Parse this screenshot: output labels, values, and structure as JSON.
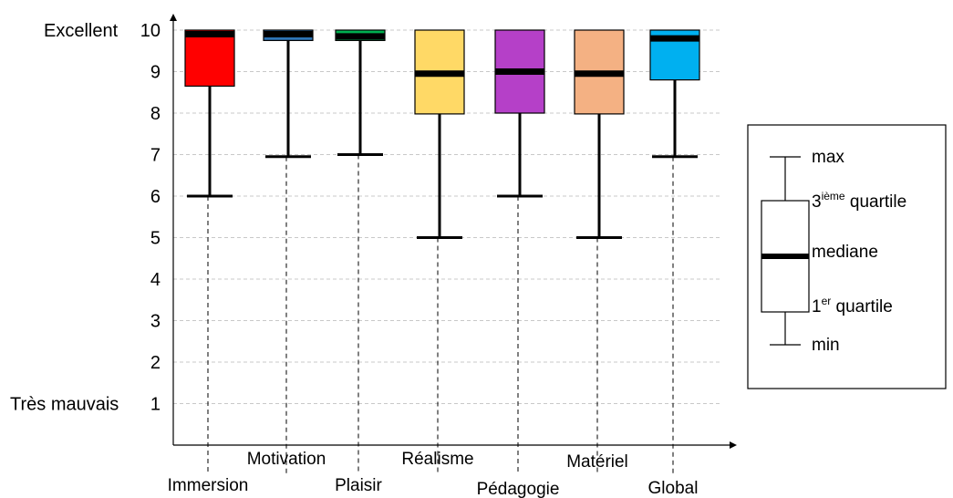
{
  "chart_data": {
    "type": "boxplot",
    "title": "",
    "ylim": [
      0,
      10
    ],
    "y_ticks": [
      "1",
      "2",
      "3",
      "4",
      "5",
      "6",
      "7",
      "8",
      "9",
      "10"
    ],
    "y_extreme_labels": {
      "top": "Excellent",
      "bottom": "Très mauvais"
    },
    "grid": "horizontal dashed",
    "categories": [
      "Immersion",
      "Motivation",
      "Plaisir",
      "Réalisme",
      "Pédagogie",
      "Matériel",
      "Global"
    ],
    "boxes": [
      {
        "name": "Immersion",
        "min": 6,
        "q1": 8.65,
        "median": 9.9,
        "q3": 10,
        "max": 10,
        "color": "#ff0000"
      },
      {
        "name": "Motivation",
        "min": 6.95,
        "q1": 9.75,
        "median": 9.9,
        "q3": 10,
        "max": 10,
        "color": "#2e75b6"
      },
      {
        "name": "Plaisir",
        "min": 7,
        "q1": 9.75,
        "median": 9.85,
        "q3": 10,
        "max": 10,
        "color": "#00b050"
      },
      {
        "name": "Réalisme",
        "min": 5,
        "q1": 7.98,
        "median": 8.95,
        "q3": 10,
        "max": 10,
        "color": "#ffd966"
      },
      {
        "name": "Pédagogie",
        "min": 6,
        "q1": 8.0,
        "median": 9.0,
        "q3": 10,
        "max": 10,
        "color": "#b540c8"
      },
      {
        "name": "Matériel",
        "min": 5,
        "q1": 7.98,
        "median": 8.95,
        "q3": 10,
        "max": 10,
        "color": "#f4b183"
      },
      {
        "name": "Global",
        "min": 6.95,
        "q1": 8.8,
        "median": 9.8,
        "q3": 10,
        "max": 10,
        "color": "#00b0f0"
      }
    ],
    "legend": {
      "placement": "right",
      "items": [
        {
          "text": "max"
        },
        {
          "sup_prefix": "3",
          "sup": "ième",
          "text": " quartile"
        },
        {
          "text": "mediane"
        },
        {
          "sup_prefix": "1",
          "sup": "er",
          "text": " quartile"
        },
        {
          "text": "min"
        }
      ]
    }
  }
}
